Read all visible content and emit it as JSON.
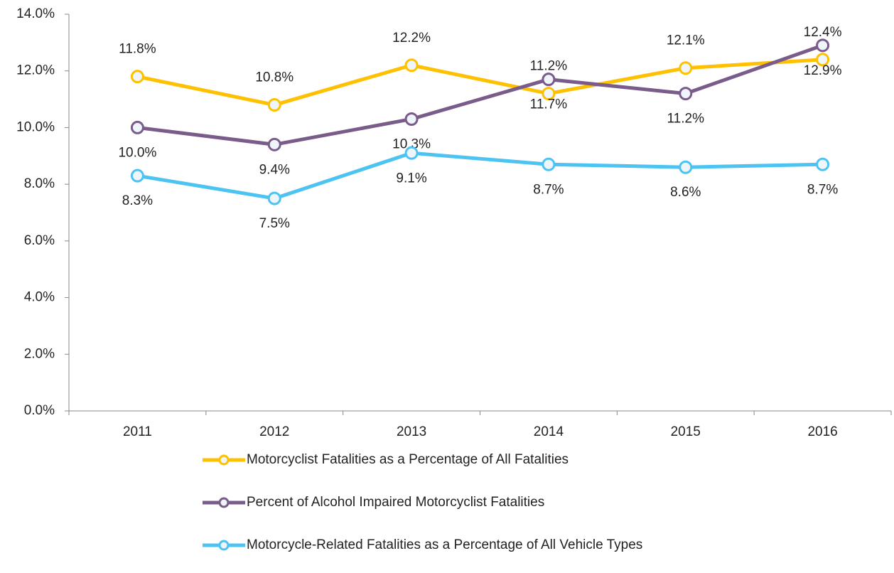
{
  "chart_data": {
    "type": "line",
    "categories": [
      "2011",
      "2012",
      "2013",
      "2014",
      "2015",
      "2016"
    ],
    "series": [
      {
        "name": "Motorcyclist Fatalities as a Percentage of All Fatalities",
        "color": "#ffc000",
        "values": [
          11.8,
          10.8,
          12.2,
          11.2,
          12.1,
          12.4
        ],
        "value_labels": [
          "11.8%",
          "10.8%",
          "12.2%",
          "11.2%",
          "12.1%",
          "12.4%"
        ]
      },
      {
        "name": "Percent of Alcohol Impaired Motorcyclist Fatalities",
        "color": "#7a5c8a",
        "values": [
          10.0,
          9.4,
          10.3,
          11.7,
          11.2,
          12.9
        ],
        "value_labels": [
          "10.0%",
          "9.4%",
          "10.3%",
          "11.7%",
          "11.2%",
          "12.9%"
        ]
      },
      {
        "name": "Motorcycle-Related Fatalities as a Percentage of All Vehicle Types",
        "color": "#4dc3f2",
        "values": [
          8.3,
          7.5,
          9.1,
          8.7,
          8.6,
          8.7
        ],
        "value_labels": [
          "8.3%",
          "7.5%",
          "9.1%",
          "8.7%",
          "8.6%",
          "8.7%"
        ]
      }
    ],
    "ylim": [
      0,
      14
    ],
    "yticks": [
      {
        "value": 0,
        "label": "0.0%"
      },
      {
        "value": 2,
        "label": "2.0%"
      },
      {
        "value": 4,
        "label": "4.0%"
      },
      {
        "value": 6,
        "label": "6.0%"
      },
      {
        "value": 8,
        "label": "8.0%"
      },
      {
        "value": 10,
        "label": "10.0%"
      },
      {
        "value": 12,
        "label": "12.0%"
      },
      {
        "value": 14,
        "label": "14.0%"
      }
    ],
    "legend": "bottom"
  }
}
